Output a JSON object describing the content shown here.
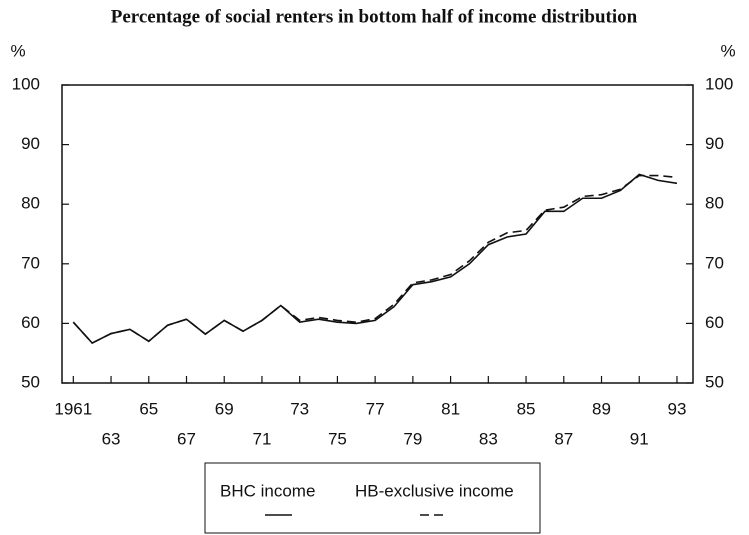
{
  "chart_data": {
    "type": "line",
    "title": "Percentage of social renters in bottom half of income distribution",
    "y_label": "%",
    "y2_label": "%",
    "x": [
      1961,
      1962,
      1963,
      1964,
      1965,
      1966,
      1967,
      1968,
      1969,
      1970,
      1971,
      1972,
      1973,
      1974,
      1975,
      1976,
      1977,
      1978,
      1979,
      1980,
      1981,
      1982,
      1983,
      1984,
      1985,
      1986,
      1987,
      1988,
      1989,
      1990,
      1991,
      1992,
      1993
    ],
    "series": [
      {
        "name": "BHC income",
        "color": "#111111",
        "line_style": "solid",
        "values": [
          60.2,
          56.7,
          58.3,
          59.0,
          57.0,
          59.7,
          60.7,
          58.2,
          60.5,
          58.7,
          60.5,
          63.0,
          60.2,
          60.7,
          60.2,
          60.0,
          60.5,
          62.8,
          66.5,
          67.0,
          67.8,
          70.0,
          73.2,
          74.5,
          75.0,
          78.8,
          78.8,
          81.0,
          81.0,
          82.3,
          85.0,
          84.0,
          83.5
        ]
      },
      {
        "name": "HB-exclusive income",
        "color": "#111111",
        "line_style": "dashed",
        "values": [
          60.2,
          56.7,
          58.3,
          59.0,
          57.0,
          59.7,
          60.7,
          58.2,
          60.5,
          58.7,
          60.5,
          63.0,
          60.5,
          61.0,
          60.5,
          60.2,
          60.8,
          63.2,
          66.8,
          67.3,
          68.2,
          70.5,
          73.6,
          75.2,
          75.6,
          79.0,
          79.5,
          81.3,
          81.6,
          82.5,
          84.8,
          84.8,
          84.5
        ]
      }
    ],
    "xlim": [
      1960.4,
      1993.85
    ],
    "xticks": [
      {
        "value": 1961,
        "label": "1961"
      },
      {
        "value": 1963,
        "label": "63"
      },
      {
        "value": 1965,
        "label": "65"
      },
      {
        "value": 1967,
        "label": "67"
      },
      {
        "value": 1969,
        "label": "69"
      },
      {
        "value": 1971,
        "label": "71"
      },
      {
        "value": 1973,
        "label": "73"
      },
      {
        "value": 1975,
        "label": "75"
      },
      {
        "value": 1977,
        "label": "77"
      },
      {
        "value": 1979,
        "label": "79"
      },
      {
        "value": 1981,
        "label": "81"
      },
      {
        "value": 1983,
        "label": "83"
      },
      {
        "value": 1985,
        "label": "85"
      },
      {
        "value": 1987,
        "label": "87"
      },
      {
        "value": 1989,
        "label": "89"
      },
      {
        "value": 1991,
        "label": "91"
      },
      {
        "value": 1993,
        "label": "93"
      }
    ],
    "ylim": [
      50,
      100
    ],
    "yticks": [
      50,
      60,
      70,
      80,
      90,
      100
    ],
    "y2lim": [
      50,
      100
    ],
    "y2ticks": [
      50,
      60,
      70,
      80,
      90,
      100
    ],
    "grid": false
  }
}
